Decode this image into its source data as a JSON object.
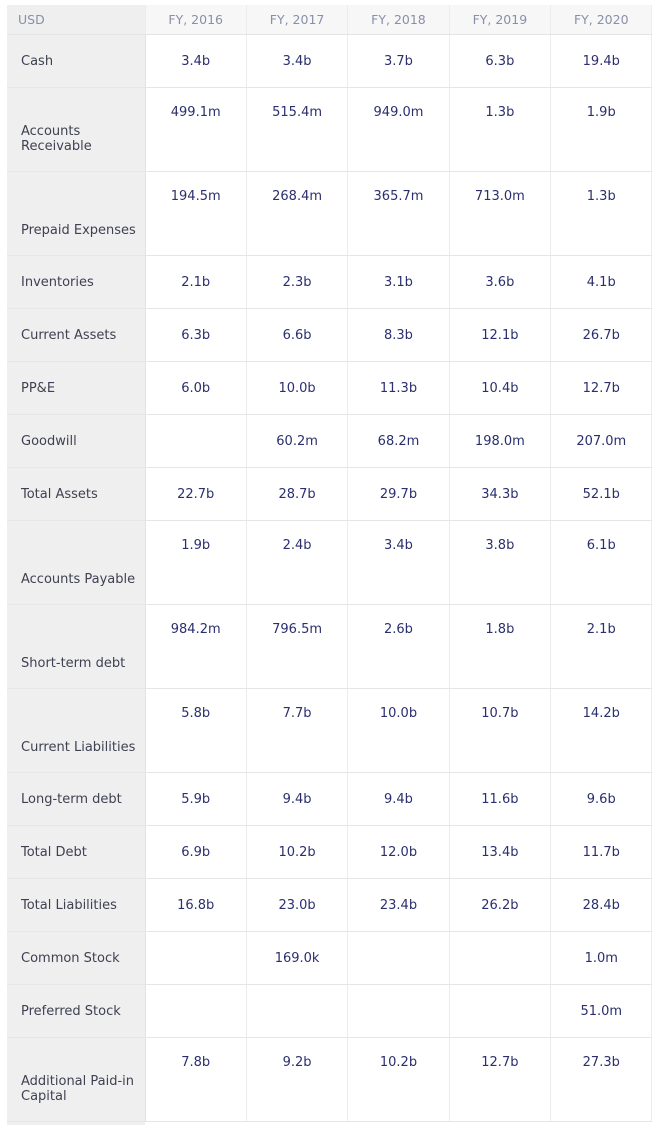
{
  "table": {
    "corner_label": "USD",
    "columns": [
      "FY, 2016",
      "FY, 2017",
      "FY, 2018",
      "FY, 2019",
      "FY, 2020"
    ],
    "rows": [
      {
        "label": "Cash",
        "two_line": false,
        "values": [
          "3.4b",
          "3.4b",
          "3.7b",
          "6.3b",
          "19.4b"
        ]
      },
      {
        "label": "Accounts Receivable",
        "two_line": true,
        "values": [
          "499.1m",
          "515.4m",
          "949.0m",
          "1.3b",
          "1.9b"
        ]
      },
      {
        "label": "Prepaid Expenses",
        "two_line": true,
        "values": [
          "194.5m",
          "268.4m",
          "365.7m",
          "713.0m",
          "1.3b"
        ]
      },
      {
        "label": "Inventories",
        "two_line": false,
        "values": [
          "2.1b",
          "2.3b",
          "3.1b",
          "3.6b",
          "4.1b"
        ]
      },
      {
        "label": "Current Assets",
        "two_line": false,
        "values": [
          "6.3b",
          "6.6b",
          "8.3b",
          "12.1b",
          "26.7b"
        ]
      },
      {
        "label": "PP&E",
        "two_line": false,
        "values": [
          "6.0b",
          "10.0b",
          "11.3b",
          "10.4b",
          "12.7b"
        ]
      },
      {
        "label": "Goodwill",
        "two_line": false,
        "values": [
          "",
          "60.2m",
          "68.2m",
          "198.0m",
          "207.0m"
        ]
      },
      {
        "label": "Total Assets",
        "two_line": false,
        "values": [
          "22.7b",
          "28.7b",
          "29.7b",
          "34.3b",
          "52.1b"
        ]
      },
      {
        "label": "Accounts Payable",
        "two_line": true,
        "values": [
          "1.9b",
          "2.4b",
          "3.4b",
          "3.8b",
          "6.1b"
        ]
      },
      {
        "label": "Short-term debt",
        "two_line": true,
        "values": [
          "984.2m",
          "796.5m",
          "2.6b",
          "1.8b",
          "2.1b"
        ]
      },
      {
        "label": "Current Liabilities",
        "two_line": true,
        "values": [
          "5.8b",
          "7.7b",
          "10.0b",
          "10.7b",
          "14.2b"
        ]
      },
      {
        "label": "Long-term debt",
        "two_line": false,
        "values": [
          "5.9b",
          "9.4b",
          "9.4b",
          "11.6b",
          "9.6b"
        ]
      },
      {
        "label": "Total Debt",
        "two_line": false,
        "values": [
          "6.9b",
          "10.2b",
          "12.0b",
          "13.4b",
          "11.7b"
        ]
      },
      {
        "label": "Total Liabilities",
        "two_line": false,
        "values": [
          "16.8b",
          "23.0b",
          "23.4b",
          "26.2b",
          "28.4b"
        ]
      },
      {
        "label": "Common Stock",
        "two_line": false,
        "values": [
          "",
          "169.0k",
          "",
          "",
          "1.0m"
        ]
      },
      {
        "label": "Preferred Stock",
        "two_line": false,
        "values": [
          "",
          "",
          "",
          "",
          "51.0m"
        ]
      },
      {
        "label": "Additional Paid-in Capital",
        "two_line": true,
        "values": [
          "7.8b",
          "9.2b",
          "10.2b",
          "12.7b",
          "27.3b"
        ]
      }
    ]
  }
}
